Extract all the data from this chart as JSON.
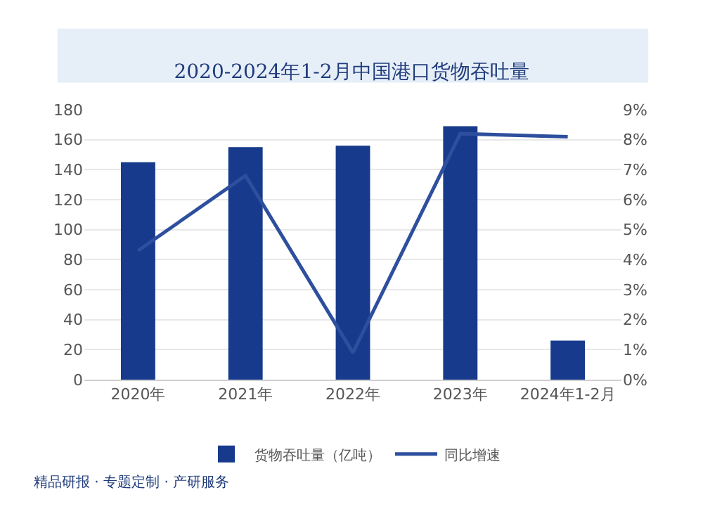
{
  "chart_data": {
    "type": "bar",
    "title": "2020-2024年1-2月中国港口货物吞吐量",
    "categories": [
      "2020年",
      "2021年",
      "2022年",
      "2023年",
      "2024年1-2月"
    ],
    "series": [
      {
        "name": "货物吞吐量（亿吨）",
        "color": "#173a8c",
        "values": [
          145,
          155,
          156,
          169,
          26
        ]
      },
      {
        "name": "同比增速",
        "type": "line",
        "axis": "y2",
        "color": "#2e4f9e",
        "values": [
          4.3,
          6.8,
          0.9,
          8.2,
          8.1
        ]
      }
    ],
    "ylim": [
      0,
      180
    ],
    "yticks": [
      0,
      20,
      40,
      60,
      80,
      100,
      120,
      140,
      160,
      180
    ],
    "y2lim": [
      0,
      9
    ],
    "y2ticks": [
      {
        "value": 0,
        "label": "0%"
      },
      {
        "value": 1,
        "label": "1%"
      },
      {
        "value": 2,
        "label": "2%"
      },
      {
        "value": 3,
        "label": "3%"
      },
      {
        "value": 4,
        "label": "4%"
      },
      {
        "value": 5,
        "label": "5%"
      },
      {
        "value": 6,
        "label": "6%"
      },
      {
        "value": 7,
        "label": "7%"
      },
      {
        "value": 8,
        "label": "8%"
      },
      {
        "value": 9,
        "label": "9%"
      }
    ],
    "grid": "y",
    "legend": "bottom",
    "marker": "none",
    "line_style": "solid",
    "annotations": [
      "精品研报 · 专题定制 · 产研服务"
    ]
  }
}
